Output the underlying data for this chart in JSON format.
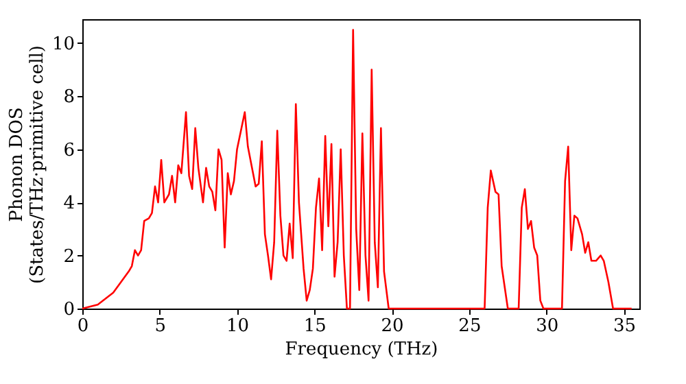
{
  "chart_data": {
    "type": "line",
    "xlabel": "Frequency (THz)",
    "ylabel": "Phonon DOS\n(States/THz·primitive cell)",
    "xlim": [
      0,
      36
    ],
    "xticks": [
      0,
      5,
      10,
      15,
      20,
      25,
      30,
      35
    ],
    "ylim": [
      0,
      10.9
    ],
    "yticks": [
      0,
      2,
      4,
      6,
      8,
      10
    ],
    "grid": false,
    "legend": false,
    "series": [
      {
        "color": "#ff0000",
        "x": [
          0,
          1,
          2,
          3,
          3.2,
          3.4,
          3.6,
          3.8,
          4.0,
          4.3,
          4.5,
          4.7,
          4.9,
          5.1,
          5.3,
          5.6,
          5.8,
          6.0,
          6.2,
          6.4,
          6.7,
          6.9,
          7.1,
          7.3,
          7.5,
          7.8,
          8.0,
          8.2,
          8.4,
          8.6,
          8.8,
          9.0,
          9.2,
          9.4,
          9.6,
          9.8,
          10.0,
          10.5,
          10.7,
          11.0,
          11.2,
          11.4,
          11.6,
          11.8,
          12.0,
          12.2,
          12.4,
          12.6,
          12.8,
          13.0,
          13.2,
          13.4,
          13.6,
          13.8,
          14.0,
          14.3,
          14.5,
          14.7,
          14.9,
          15.1,
          15.3,
          15.5,
          15.7,
          15.9,
          16.1,
          16.3,
          16.5,
          16.7,
          16.9,
          17.1,
          17.3,
          17.5,
          17.7,
          17.9,
          18.1,
          18.3,
          18.5,
          18.7,
          18.9,
          19.1,
          19.3,
          19.5,
          19.8,
          26.0,
          26.2,
          26.4,
          26.7,
          26.9,
          27.1,
          27.5,
          28.2,
          28.4,
          28.6,
          28.8,
          29.0,
          29.2,
          29.4,
          29.6,
          29.8,
          31.0,
          31.2,
          31.4,
          31.6,
          31.8,
          32.0,
          32.3,
          32.5,
          32.7,
          32.9,
          33.2,
          33.5,
          33.7,
          34.0,
          34.3,
          35.5
        ],
        "values": [
          0,
          0.15,
          0.6,
          1.4,
          1.6,
          2.2,
          2.0,
          2.2,
          3.3,
          3.4,
          3.6,
          4.6,
          4.0,
          5.6,
          4.0,
          4.3,
          5.0,
          4.0,
          5.4,
          5.1,
          7.4,
          5.0,
          4.5,
          6.8,
          5.3,
          4.0,
          5.3,
          4.6,
          4.4,
          3.7,
          6.0,
          5.6,
          2.3,
          5.1,
          4.3,
          4.8,
          6.0,
          7.4,
          6.1,
          5.2,
          4.6,
          4.7,
          6.3,
          2.8,
          2.0,
          1.1,
          2.5,
          6.7,
          3.5,
          2.0,
          1.8,
          3.2,
          1.9,
          7.7,
          4.0,
          1.5,
          0.3,
          0.7,
          1.5,
          3.8,
          4.9,
          2.2,
          6.5,
          3.1,
          6.2,
          1.2,
          2.5,
          6.0,
          2.0,
          0,
          0,
          10.5,
          3.0,
          0.7,
          6.6,
          2.0,
          0.3,
          9.0,
          2.5,
          0.8,
          6.8,
          1.4,
          0,
          0,
          3.8,
          5.2,
          4.4,
          4.3,
          1.6,
          0,
          0,
          3.8,
          4.5,
          3.0,
          3.3,
          2.3,
          2.0,
          0.3,
          0,
          0,
          4.8,
          6.1,
          2.2,
          3.5,
          3.4,
          2.8,
          2.1,
          2.5,
          1.8,
          1.8,
          2.0,
          1.8,
          1.0,
          0,
          0
        ]
      }
    ]
  }
}
